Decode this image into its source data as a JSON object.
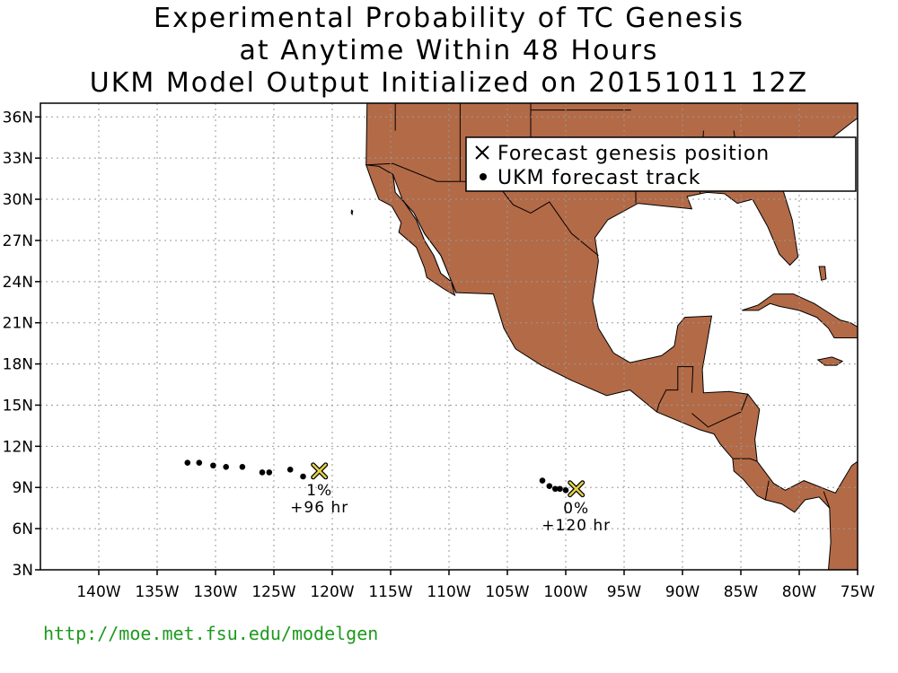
{
  "title": {
    "line1": "Experimental Probability of TC Genesis",
    "line2": "at Anytime Within 48 Hours",
    "line3": "UKM Model Output Initialized on 20151011 12Z"
  },
  "colors": {
    "land": "#b36a47",
    "ocean": "#ffffff",
    "marker_fill": "#e6d24a",
    "url": "#1e9a1e"
  },
  "map": {
    "lon_range": [
      -145,
      -75
    ],
    "lat_range": [
      3,
      37
    ],
    "x_ticks": [
      {
        "lon": -140,
        "label": "140W"
      },
      {
        "lon": -135,
        "label": "135W"
      },
      {
        "lon": -130,
        "label": "130W"
      },
      {
        "lon": -125,
        "label": "125W"
      },
      {
        "lon": -120,
        "label": "120W"
      },
      {
        "lon": -115,
        "label": "115W"
      },
      {
        "lon": -110,
        "label": "110W"
      },
      {
        "lon": -105,
        "label": "105W"
      },
      {
        "lon": -100,
        "label": "100W"
      },
      {
        "lon": -95,
        "label": "95W"
      },
      {
        "lon": -90,
        "label": "90W"
      },
      {
        "lon": -85,
        "label": "85W"
      },
      {
        "lon": -80,
        "label": "80W"
      },
      {
        "lon": -75,
        "label": "75W"
      }
    ],
    "y_ticks": [
      {
        "lat": 3,
        "label": "3N"
      },
      {
        "lat": 6,
        "label": "6N"
      },
      {
        "lat": 9,
        "label": "9N"
      },
      {
        "lat": 12,
        "label": "12N"
      },
      {
        "lat": 15,
        "label": "15N"
      },
      {
        "lat": 18,
        "label": "18N"
      },
      {
        "lat": 21,
        "label": "21N"
      },
      {
        "lat": 24,
        "label": "24N"
      },
      {
        "lat": 27,
        "label": "27N"
      },
      {
        "lat": 30,
        "label": "30N"
      },
      {
        "lat": 33,
        "label": "33N"
      },
      {
        "lat": 36,
        "label": "36N"
      }
    ],
    "grid": true
  },
  "legend": {
    "genesis_label": "Forecast genesis position",
    "track_label": "UKM forecast track",
    "placement": "top-right"
  },
  "systems": [
    {
      "genesis": {
        "lon": -121.1,
        "lat": 10.2
      },
      "probability": "1%",
      "lead": "+96 hr",
      "track": [
        {
          "lon": -132.4,
          "lat": 10.8
        },
        {
          "lon": -131.4,
          "lat": 10.8
        },
        {
          "lon": -130.2,
          "lat": 10.6
        },
        {
          "lon": -129.1,
          "lat": 10.5
        },
        {
          "lon": -127.7,
          "lat": 10.5
        },
        {
          "lon": -126.0,
          "lat": 10.1
        },
        {
          "lon": -125.4,
          "lat": 10.1
        },
        {
          "lon": -123.6,
          "lat": 10.3
        },
        {
          "lon": -122.5,
          "lat": 9.8
        }
      ]
    },
    {
      "genesis": {
        "lon": -99.1,
        "lat": 8.9
      },
      "probability": "0%",
      "lead": "+120 hr",
      "track": [
        {
          "lon": -102.0,
          "lat": 9.5
        },
        {
          "lon": -101.4,
          "lat": 9.1
        },
        {
          "lon": -100.9,
          "lat": 8.9
        },
        {
          "lon": -100.5,
          "lat": 8.9
        },
        {
          "lon": -100.0,
          "lat": 8.8
        }
      ]
    }
  ],
  "footer": {
    "url": "http://moe.met.fsu.edu/modelgen"
  }
}
